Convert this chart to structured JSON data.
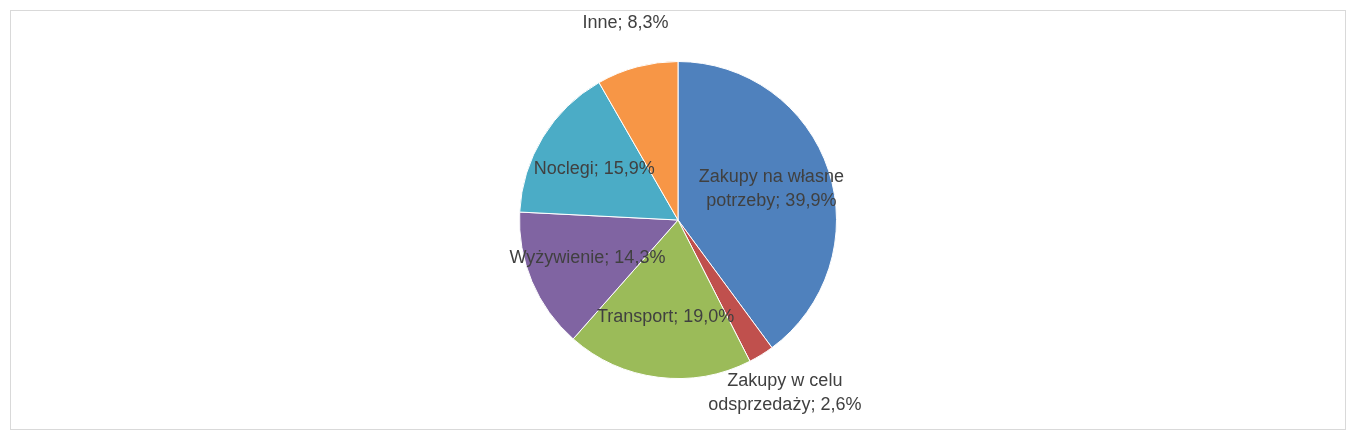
{
  "chart_data": {
    "type": "pie",
    "categories": [
      "Zakupy na własne potrzeby",
      "Zakupy w celu odsprzedaży",
      "Transport",
      "Wyżywienie",
      "Noclegi",
      "Inne"
    ],
    "values": [
      39.9,
      2.6,
      19.0,
      14.3,
      15.9,
      8.3
    ],
    "value_labels": [
      "39,9%",
      "2,6%",
      "19,0%",
      "14,3%",
      "15,9%",
      "8,3%"
    ],
    "colors": [
      "#4f81bd",
      "#c0504d",
      "#9bbb59",
      "#8064a2",
      "#4bacc6",
      "#f79646"
    ],
    "legend": false
  }
}
